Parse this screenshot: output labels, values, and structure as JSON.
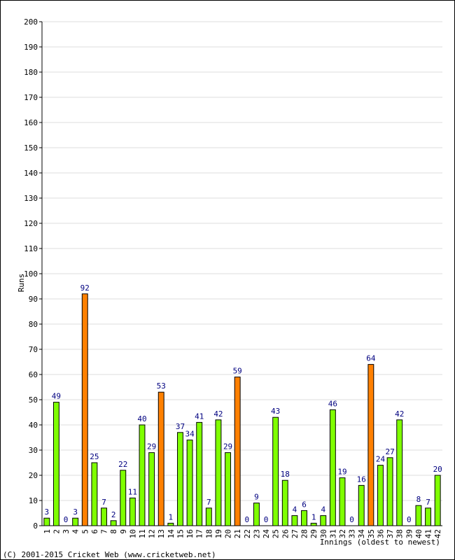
{
  "footer": "(C) 2001-2015 Cricket Web (www.cricketweb.net)",
  "colors": {
    "normal": "#7FFF00",
    "highlight": "#FF8000",
    "label": "#000080",
    "grid": "#dddddd"
  },
  "chart_data": {
    "type": "bar",
    "title": "",
    "xlabel": "Innings (oldest to newest)",
    "ylabel": "Runs",
    "ylim": [
      0,
      200
    ],
    "yticks": [
      0,
      10,
      20,
      30,
      40,
      50,
      60,
      70,
      80,
      90,
      100,
      110,
      120,
      130,
      140,
      150,
      160,
      170,
      180,
      190,
      200
    ],
    "grid": true,
    "categories": [
      "1",
      "2",
      "3",
      "4",
      "5",
      "6",
      "7",
      "8",
      "9",
      "10",
      "11",
      "12",
      "13",
      "14",
      "15",
      "16",
      "17",
      "18",
      "19",
      "20",
      "21",
      "22",
      "23",
      "24",
      "25",
      "26",
      "27",
      "28",
      "29",
      "30",
      "31",
      "32",
      "33",
      "34",
      "35",
      "36",
      "37",
      "38",
      "39",
      "40",
      "41",
      "42"
    ],
    "values": [
      3,
      49,
      0,
      3,
      92,
      25,
      7,
      2,
      22,
      11,
      40,
      29,
      53,
      1,
      37,
      34,
      41,
      7,
      42,
      29,
      59,
      0,
      9,
      0,
      43,
      18,
      4,
      6,
      1,
      4,
      46,
      19,
      0,
      16,
      64,
      24,
      27,
      42,
      0,
      8,
      7,
      20
    ],
    "highlight_threshold": 50
  }
}
